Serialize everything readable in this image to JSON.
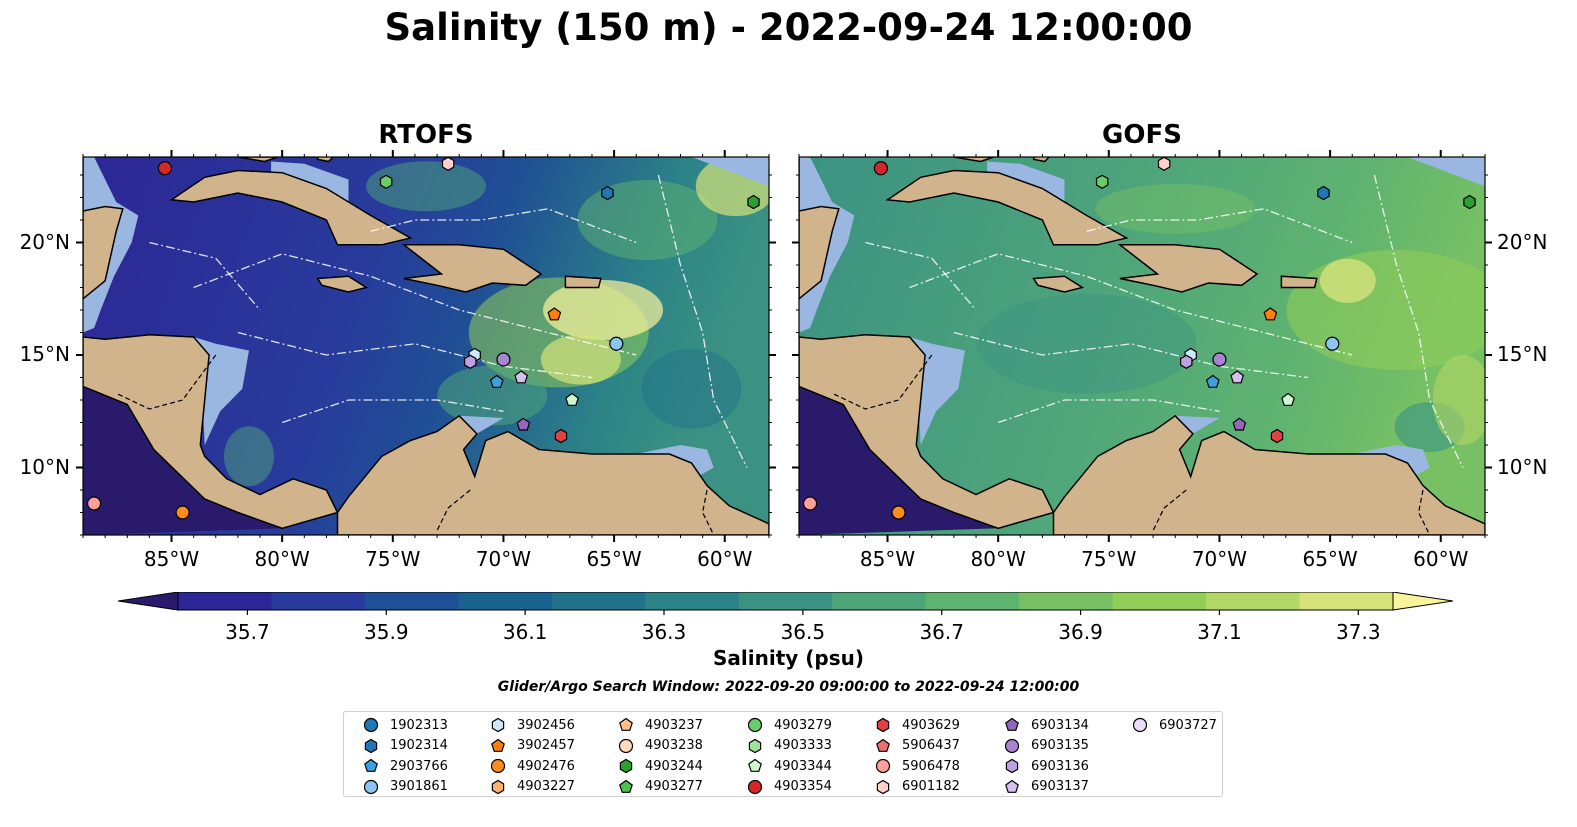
{
  "title": "Salinity (150 m) - 2022-09-24 12:00:00",
  "maps": [
    {
      "title": "RTOFS",
      "theme": "rtofs"
    },
    {
      "title": "GOFS",
      "theme": "gofs"
    }
  ],
  "axes": {
    "x_ticks": [
      "85°W",
      "80°W",
      "75°W",
      "70°W",
      "65°W",
      "60°W"
    ],
    "x_values": [
      -85,
      -80,
      -75,
      -70,
      -65,
      -60
    ],
    "y_ticks": [
      "20°N",
      "15°N",
      "10°N"
    ],
    "y_values": [
      20,
      15,
      10
    ],
    "lon_range": [
      -89,
      -58
    ],
    "lat_range": [
      7,
      23.8
    ]
  },
  "colorbar": {
    "label": "Salinity (psu)",
    "min": 35.6,
    "max": 37.35,
    "tick_values": [
      35.7,
      35.9,
      36.1,
      36.3,
      36.5,
      36.7,
      36.9,
      37.1,
      37.3
    ],
    "tick_labels": [
      "35.7",
      "35.9",
      "36.1",
      "36.3",
      "36.5",
      "36.7",
      "36.9",
      "37.1",
      "37.3"
    ],
    "colors": [
      "#2a1a6b",
      "#2d2695",
      "#283b9c",
      "#1f4f94",
      "#1c628e",
      "#22728a",
      "#2c8387",
      "#3b9282",
      "#4ea57a",
      "#5fb370",
      "#77c064",
      "#92cd58",
      "#b2d766",
      "#d6e27a",
      "#fbf39b"
    ]
  },
  "search_window": "Glider/Argo Search Window: 2022-09-20 09:00:00 to 2022-09-24 12:00:00",
  "legend": [
    {
      "id": "1902313",
      "color": "#1f77b4",
      "marker": "circle"
    },
    {
      "id": "1902314",
      "color": "#1f77b4",
      "marker": "hexagon"
    },
    {
      "id": "2903766",
      "color": "#3aa0e0",
      "marker": "pentagon"
    },
    {
      "id": "3901861",
      "color": "#8cc6f0",
      "marker": "circle"
    },
    {
      "id": "3902456",
      "color": "#cde8fa",
      "marker": "hexagon"
    },
    {
      "id": "3902457",
      "color": "#ff7f0e",
      "marker": "pentagon"
    },
    {
      "id": "4902476",
      "color": "#ff8c1a",
      "marker": "circle"
    },
    {
      "id": "4903227",
      "color": "#ffb070",
      "marker": "hexagon"
    },
    {
      "id": "4903237",
      "color": "#ffbe8a",
      "marker": "pentagon"
    },
    {
      "id": "4903238",
      "color": "#ffdcbc",
      "marker": "circle"
    },
    {
      "id": "4903244",
      "color": "#2ca02c",
      "marker": "hexagon"
    },
    {
      "id": "4903277",
      "color": "#4ec24e",
      "marker": "pentagon"
    },
    {
      "id": "4903279",
      "color": "#6acd6a",
      "marker": "circle"
    },
    {
      "id": "4903333",
      "color": "#9ae69a",
      "marker": "hexagon"
    },
    {
      "id": "4903344",
      "color": "#cff7cf",
      "marker": "pentagon"
    },
    {
      "id": "4903354",
      "color": "#d62728",
      "marker": "circle"
    },
    {
      "id": "4903629",
      "color": "#e04040",
      "marker": "hexagon"
    },
    {
      "id": "5906437",
      "color": "#f07070",
      "marker": "pentagon"
    },
    {
      "id": "5906478",
      "color": "#ff9f9a",
      "marker": "circle"
    },
    {
      "id": "6901182",
      "color": "#ffd0cc",
      "marker": "hexagon"
    },
    {
      "id": "6903134",
      "color": "#9467bd",
      "marker": "pentagon"
    },
    {
      "id": "6903135",
      "color": "#a984cf",
      "marker": "circle"
    },
    {
      "id": "6903136",
      "color": "#bfa0e0",
      "marker": "hexagon"
    },
    {
      "id": "6903137",
      "color": "#d6c0f0",
      "marker": "pentagon"
    },
    {
      "id": "6903727",
      "color": "#ecdcfa",
      "marker": "circle"
    }
  ],
  "floats": [
    {
      "lon": -85.3,
      "lat": 23.3,
      "color": "#d62728",
      "marker": "circle"
    },
    {
      "lon": -72.5,
      "lat": 23.5,
      "color": "#ffd0cc",
      "marker": "hexagon"
    },
    {
      "lon": -75.3,
      "lat": 22.7,
      "color": "#6acd6a",
      "marker": "hexagon"
    },
    {
      "lon": -65.3,
      "lat": 22.2,
      "color": "#1f77b4",
      "marker": "hexagon"
    },
    {
      "lon": -58.7,
      "lat": 21.8,
      "color": "#2ca02c",
      "marker": "hexagon"
    },
    {
      "lon": -67.7,
      "lat": 16.8,
      "color": "#ff7f0e",
      "marker": "pentagon"
    },
    {
      "lon": -64.9,
      "lat": 15.5,
      "color": "#8cc6f0",
      "marker": "circle"
    },
    {
      "lon": -71.3,
      "lat": 15.0,
      "color": "#cde8fa",
      "marker": "hexagon"
    },
    {
      "lon": -70.0,
      "lat": 14.8,
      "color": "#a984cf",
      "marker": "circle"
    },
    {
      "lon": -71.5,
      "lat": 14.7,
      "color": "#bfa0e0",
      "marker": "hexagon"
    },
    {
      "lon": -69.2,
      "lat": 14.0,
      "color": "#d6c0f0",
      "marker": "pentagon"
    },
    {
      "lon": -70.3,
      "lat": 13.8,
      "color": "#3aa0e0",
      "marker": "pentagon"
    },
    {
      "lon": -66.9,
      "lat": 13.0,
      "color": "#cff7cf",
      "marker": "pentagon"
    },
    {
      "lon": -69.1,
      "lat": 11.9,
      "color": "#9467bd",
      "marker": "pentagon"
    },
    {
      "lon": -67.4,
      "lat": 11.4,
      "color": "#e04040",
      "marker": "hexagon"
    },
    {
      "lon": -88.5,
      "lat": 8.4,
      "color": "#ff9f9a",
      "marker": "circle"
    },
    {
      "lon": -84.5,
      "lat": 8.0,
      "color": "#ff8c1a",
      "marker": "circle"
    }
  ]
}
